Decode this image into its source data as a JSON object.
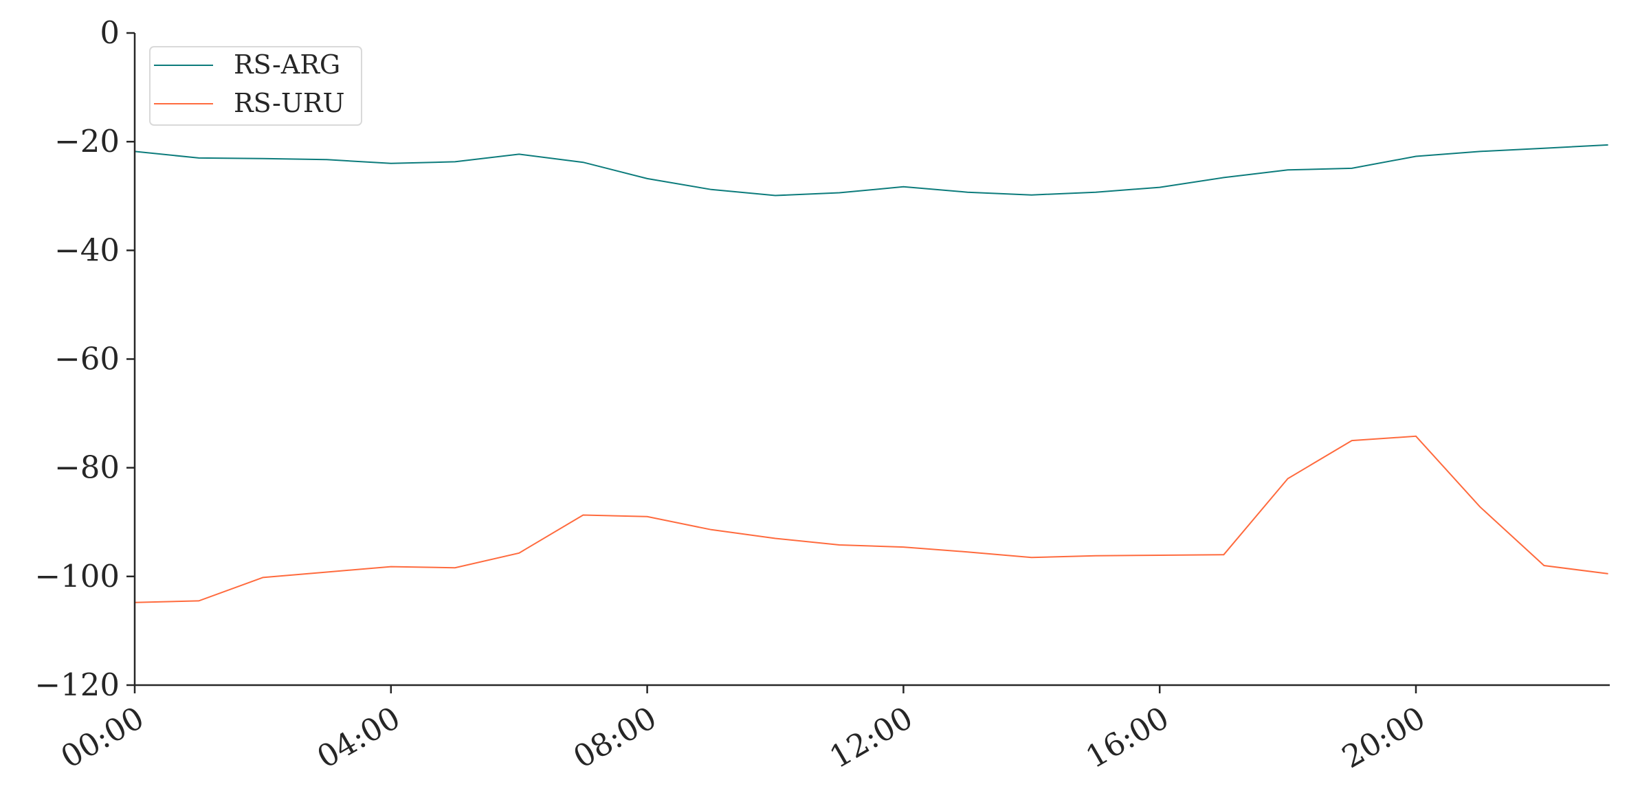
{
  "chart_data": {
    "type": "line",
    "title": "",
    "xlabel": "",
    "ylabel": "",
    "x": [
      "00:00",
      "01:00",
      "02:00",
      "03:00",
      "04:00",
      "05:00",
      "06:00",
      "07:00",
      "08:00",
      "09:00",
      "10:00",
      "11:00",
      "12:00",
      "13:00",
      "14:00",
      "15:00",
      "16:00",
      "17:00",
      "18:00",
      "19:00",
      "20:00",
      "21:00",
      "22:00",
      "23:00"
    ],
    "xticks": [
      "00:00",
      "04:00",
      "08:00",
      "12:00",
      "16:00",
      "20:00"
    ],
    "ylim": [
      -120,
      0
    ],
    "yticks": [
      0,
      -20,
      -40,
      -60,
      -80,
      -100,
      -120
    ],
    "ytick_labels": [
      "0",
      "−20",
      "−40",
      "−60",
      "−80",
      "−100",
      "−120"
    ],
    "grid": false,
    "legend_position": "top-left",
    "series": [
      {
        "name": "RS-ARG",
        "color": "#0b7b7b",
        "values": [
          -21.8,
          -23.0,
          -23.1,
          -23.3,
          -24.0,
          -23.7,
          -22.3,
          -23.8,
          -26.8,
          -28.8,
          -29.9,
          -29.4,
          -28.3,
          -29.3,
          -29.8,
          -29.3,
          -28.4,
          -26.6,
          -25.2,
          -24.9,
          -22.7,
          -21.8,
          -21.2,
          -20.6
        ]
      },
      {
        "name": "RS-URU",
        "color": "#ff6a3d",
        "values": [
          -104.8,
          -104.5,
          -100.2,
          -99.2,
          -98.2,
          -98.4,
          -95.7,
          -88.7,
          -89.0,
          -91.4,
          -93.0,
          -94.2,
          -94.6,
          -95.5,
          -96.5,
          -96.2,
          -96.1,
          -96.0,
          -82.0,
          -75.0,
          -74.2,
          -87.2,
          -98.0,
          -99.5
        ]
      }
    ]
  }
}
